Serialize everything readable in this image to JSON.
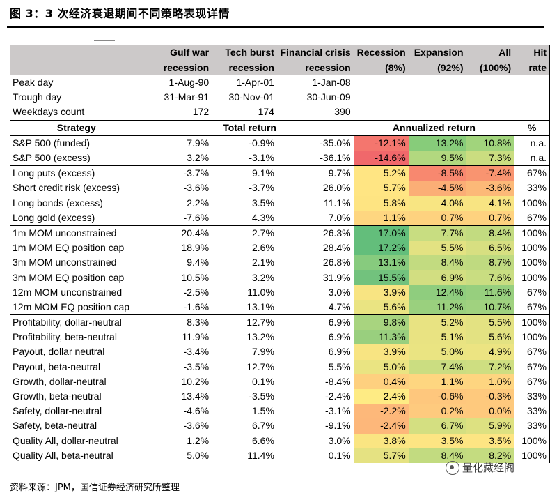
{
  "title": "图 3：3 次经济衰退期间不同策略表现详情",
  "source": "资料来源：JPM，国信证券经济研究所整理",
  "watermark": "量化藏经阁",
  "header": {
    "row1": [
      "",
      "Gulf war",
      "Tech burst",
      "Financial crisis",
      "Recession",
      "Expansion",
      "All",
      "Hit"
    ],
    "row2": [
      "",
      "recession",
      "recession",
      "recession",
      "(8%)",
      "(92%)",
      "(100%)",
      "rate"
    ]
  },
  "meta_rows": [
    {
      "label": "Peak day",
      "values": [
        "1-Aug-90",
        "1-Apr-01",
        "1-Jan-08"
      ]
    },
    {
      "label": "Trough day",
      "values": [
        "31-Mar-91",
        "30-Nov-01",
        "30-Jun-09"
      ]
    },
    {
      "label": "Weekdays count",
      "values": [
        "172",
        "174",
        "390"
      ]
    }
  ],
  "strategy_header": {
    "strategy": "Strategy",
    "total_return": "Total return",
    "annualized_return": "Annualized return",
    "pct": "%"
  },
  "groups": [
    {
      "rows": [
        {
          "name": "S&P 500 (funded)",
          "gulf": "7.9%",
          "tech": "-0.9%",
          "fin": "-35.0%",
          "rec": "-12.1%",
          "exp": "13.2%",
          "all": "10.8%",
          "hit": "n.a.",
          "colors": [
            "#f4766e",
            "#87cc7a",
            "#a1d47c"
          ]
        },
        {
          "name": "S&P 500 (excess)",
          "gulf": "3.2%",
          "tech": "-3.1%",
          "fin": "-36.1%",
          "rec": "-14.6%",
          "exp": "9.5%",
          "all": "7.3%",
          "hit": "n.a.",
          "colors": [
            "#f0686b",
            "#b2d87f",
            "#cadd80"
          ]
        }
      ]
    },
    {
      "rows": [
        {
          "name": "Long puts (excess)",
          "gulf": "-3.7%",
          "tech": "9.1%",
          "fin": "9.7%",
          "rec": "5.2%",
          "exp": "-8.5%",
          "all": "-7.4%",
          "hit": "67%",
          "colors": [
            "#ffe583",
            "#f8886f",
            "#f99470"
          ]
        },
        {
          "name": "Short credit risk (excess)",
          "gulf": "-3.6%",
          "tech": "-3.7%",
          "fin": "26.0%",
          "rec": "5.7%",
          "exp": "-4.5%",
          "all": "-3.6%",
          "hit": "33%",
          "colors": [
            "#ffe583",
            "#fbae76",
            "#fcb978"
          ]
        },
        {
          "name": "Long bonds (excess)",
          "gulf": "2.2%",
          "tech": "3.5%",
          "fin": "11.1%",
          "rec": "5.8%",
          "exp": "4.0%",
          "all": "4.1%",
          "hit": "100%",
          "colors": [
            "#fee482",
            "#f8e582",
            "#f8e482"
          ]
        },
        {
          "name": "Long gold (excess)",
          "gulf": "-7.6%",
          "tech": "4.3%",
          "fin": "7.0%",
          "rec": "1.1%",
          "exp": "0.7%",
          "all": "0.7%",
          "hit": "67%",
          "colors": [
            "#fed680",
            "#fed27f",
            "#fed27f"
          ]
        }
      ]
    },
    {
      "rows": [
        {
          "name": "1m MOM unconstrained",
          "gulf": "20.4%",
          "tech": "2.7%",
          "fin": "26.3%",
          "rec": "17.0%",
          "exp": "7.7%",
          "all": "8.4%",
          "hit": "100%",
          "colors": [
            "#63be7b",
            "#c8dd81",
            "#c2db80"
          ]
        },
        {
          "name": "1m MOM EQ position cap",
          "gulf": "18.9%",
          "tech": "2.6%",
          "fin": "28.4%",
          "rec": "17.2%",
          "exp": "5.5%",
          "all": "6.5%",
          "hit": "100%",
          "colors": [
            "#63be7b",
            "#e3e282",
            "#d7df81"
          ]
        },
        {
          "name": "3m MOM unconstrained",
          "gulf": "9.4%",
          "tech": "2.1%",
          "fin": "26.8%",
          "rec": "13.1%",
          "exp": "8.4%",
          "all": "8.7%",
          "hit": "100%",
          "colors": [
            "#87cb7e",
            "#c2db80",
            "#bfda80"
          ]
        },
        {
          "name": "3m MOM EQ position cap",
          "gulf": "10.5%",
          "tech": "3.2%",
          "fin": "31.9%",
          "rec": "15.5%",
          "exp": "6.9%",
          "all": "7.6%",
          "hit": "100%",
          "colors": [
            "#72c27d",
            "#d2de81",
            "#c9dd81"
          ]
        },
        {
          "name": "12m MOM unconstrained",
          "gulf": "-2.5%",
          "tech": "11.0%",
          "fin": "3.0%",
          "rec": "3.9%",
          "exp": "12.4%",
          "all": "11.6%",
          "hit": "67%",
          "colors": [
            "#f8e482",
            "#8fcd7e",
            "#97cf7e"
          ]
        },
        {
          "name": "12m MOM EQ position cap",
          "gulf": "-1.6%",
          "tech": "13.1%",
          "fin": "4.7%",
          "rec": "5.6%",
          "exp": "11.2%",
          "all": "10.7%",
          "hit": "67%",
          "colors": [
            "#eae482",
            "#9ad07e",
            "#a0d27f"
          ]
        }
      ]
    },
    {
      "rows": [
        {
          "name": "Profitability, dollar-neutral",
          "gulf": "8.3%",
          "tech": "12.7%",
          "fin": "6.9%",
          "rec": "9.8%",
          "exp": "5.2%",
          "all": "5.5%",
          "hit": "100%",
          "colors": [
            "#a8d47f",
            "#e8e382",
            "#e3e282"
          ]
        },
        {
          "name": "Profitability, beta-neutral",
          "gulf": "11.9%",
          "tech": "13.2%",
          "fin": "6.9%",
          "rec": "11.3%",
          "exp": "5.1%",
          "all": "5.6%",
          "hit": "100%",
          "colors": [
            "#99cf7e",
            "#e9e382",
            "#e3e282"
          ]
        },
        {
          "name": "Payout, dollar neutral",
          "gulf": "-3.4%",
          "tech": "7.9%",
          "fin": "6.9%",
          "rec": "3.9%",
          "exp": "5.0%",
          "all": "4.9%",
          "hit": "67%",
          "colors": [
            "#f8e482",
            "#eae482",
            "#ece482"
          ]
        },
        {
          "name": "Payout, beta-neutral",
          "gulf": "-3.5%",
          "tech": "12.7%",
          "fin": "5.5%",
          "rec": "5.0%",
          "exp": "7.4%",
          "all": "7.2%",
          "hit": "67%",
          "colors": [
            "#eae482",
            "#cbdd81",
            "#cede81"
          ]
        },
        {
          "name": "Growth, dollar-neutral",
          "gulf": "10.2%",
          "tech": "0.1%",
          "fin": "-8.4%",
          "rec": "0.4%",
          "exp": "1.1%",
          "all": "1.0%",
          "hit": "67%",
          "colors": [
            "#fed07f",
            "#fed680",
            "#fed580"
          ]
        },
        {
          "name": "Growth, beta-neutral",
          "gulf": "13.4%",
          "tech": "-3.5%",
          "fin": "-2.4%",
          "rec": "2.4%",
          "exp": "-0.6%",
          "all": "-0.3%",
          "hit": "33%",
          "colors": [
            "#feeb84",
            "#fec77d",
            "#fec97d"
          ]
        },
        {
          "name": "Safety, dollar-neutral",
          "gulf": "-4.6%",
          "tech": "1.5%",
          "fin": "-3.1%",
          "rec": "-2.2%",
          "exp": "0.2%",
          "all": "0.0%",
          "hit": "33%",
          "colors": [
            "#fdb87a",
            "#feca7e",
            "#fec97d"
          ]
        },
        {
          "name": "Safety, beta-neutral",
          "gulf": "-3.6%",
          "tech": "6.7%",
          "fin": "-9.1%",
          "rec": "-2.4%",
          "exp": "6.7%",
          "all": "5.9%",
          "hit": "33%",
          "colors": [
            "#fdb77a",
            "#d4df81",
            "#dde181"
          ]
        },
        {
          "name": "Quality All, dollar-neutral",
          "gulf": "1.2%",
          "tech": "6.6%",
          "fin": "3.0%",
          "rec": "3.8%",
          "exp": "3.5%",
          "all": "3.5%",
          "hit": "100%",
          "colors": [
            "#fae582",
            "#fde583",
            "#fde583"
          ]
        },
        {
          "name": "Quality All, beta-neutral",
          "gulf": "5.0%",
          "tech": "11.4%",
          "fin": "0.1%",
          "rec": "5.7%",
          "exp": "8.4%",
          "all": "8.2%",
          "hit": "100%",
          "colors": [
            "#e5e282",
            "#c2db80",
            "#c4dc80"
          ]
        }
      ]
    }
  ]
}
